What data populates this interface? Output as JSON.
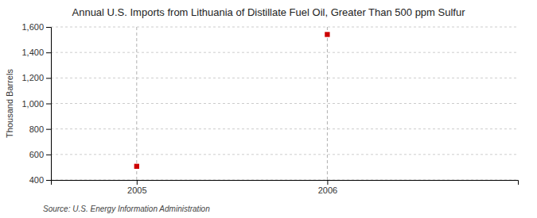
{
  "chart_data": {
    "type": "scatter",
    "title": "Annual U.S. Imports from Lithuania of Distillate Fuel Oil, Greater Than 500 ppm Sulfur",
    "ylabel": "Thousand Barrels",
    "annotations": [
      "Source: U.S. Energy Information Administration"
    ],
    "x": [
      2005,
      2006
    ],
    "values": [
      507,
      1541
    ],
    "color": "#cc0000",
    "marker": "square",
    "xlim": [
      2004.55,
      2007.0
    ],
    "xticks": [
      2005,
      2006
    ],
    "ylim": [
      400,
      1600
    ],
    "yticks": [
      400,
      600,
      800,
      {
        "value": 1000,
        "label": "1,000"
      },
      {
        "value": 1200,
        "label": "1,200"
      },
      {
        "value": 1400,
        "label": "1,400"
      },
      {
        "value": 1600,
        "label": "1,600"
      }
    ],
    "grid": true
  }
}
